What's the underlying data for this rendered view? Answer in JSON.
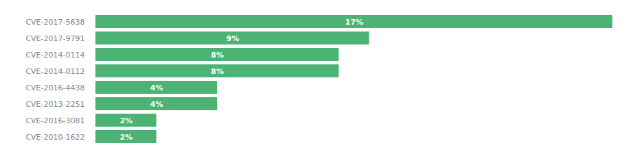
{
  "chart_data": {
    "type": "bar",
    "orientation": "horizontal",
    "categories": [
      "CVE-2017-5638",
      "CVE-2017-9791",
      "CVE-2014-0114",
      "CVE-2014-0112",
      "CVE-2016-4438",
      "CVE-2013-2251",
      "CVE-2016-3081",
      "CVE-2010-1622"
    ],
    "values": [
      17,
      9,
      8,
      8,
      4,
      4,
      2,
      2
    ],
    "value_labels": [
      "17%",
      "9%",
      "8%",
      "8%",
      "4%",
      "4%",
      "2%",
      "2%"
    ],
    "color": "#4db374",
    "xlim": [
      0,
      17
    ],
    "data_labels": true,
    "tick_labels": "y",
    "grid": false
  }
}
